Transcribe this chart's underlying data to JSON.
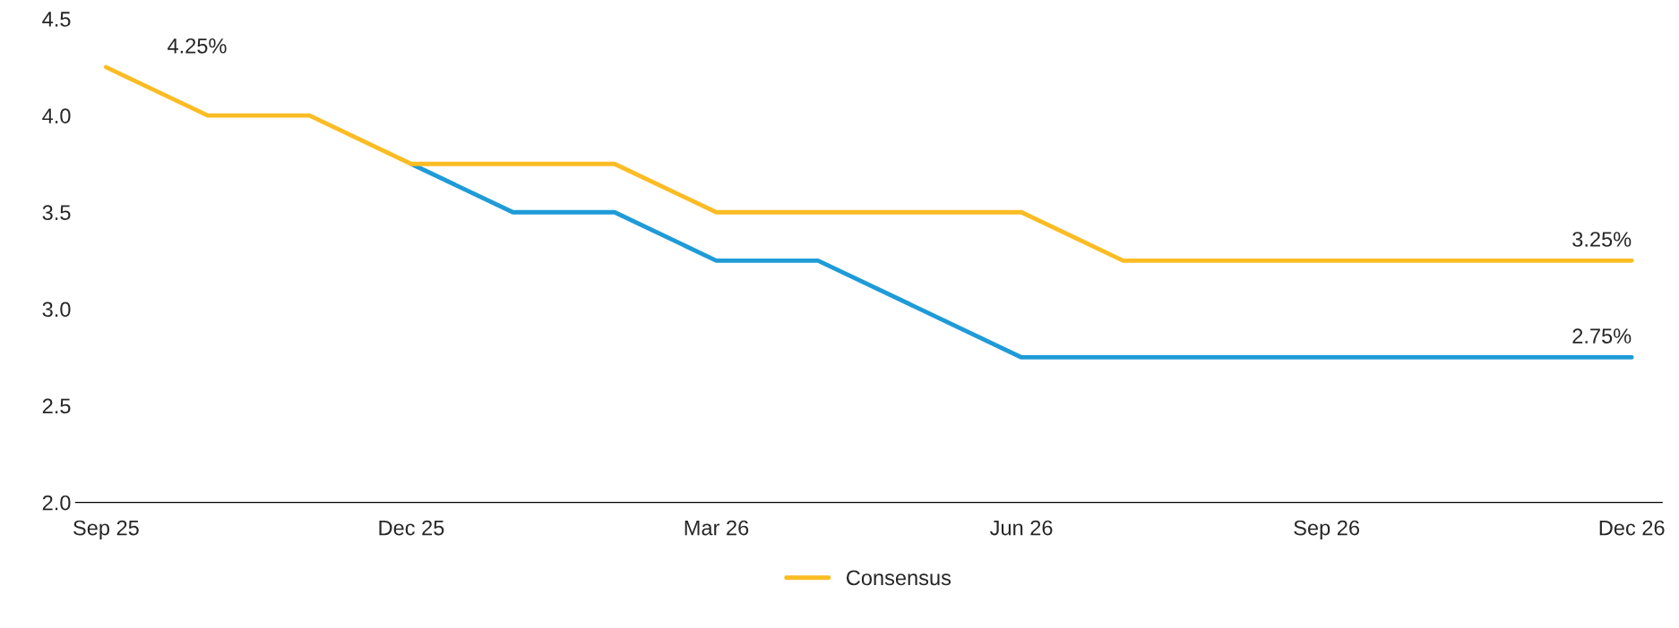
{
  "chart_data": {
    "type": "line",
    "categories": [
      "Sep 25",
      null,
      null,
      "Dec 25",
      null,
      null,
      "Mar 26",
      null,
      null,
      "Jun 26",
      null,
      null,
      "Sep 26",
      null,
      null,
      "Dec 26"
    ],
    "series": [
      {
        "color": "#1f9bd7",
        "values": [
          null,
          null,
          null,
          3.75,
          3.5,
          3.5,
          3.25,
          3.25,
          3.0,
          2.75,
          2.75,
          2.75,
          2.75,
          2.75,
          2.75,
          2.75
        ]
      },
      {
        "name": "Consensus",
        "color": "#fbbc24",
        "values": [
          4.25,
          4.0,
          4.0,
          3.75,
          3.75,
          3.75,
          3.5,
          3.5,
          3.5,
          3.5,
          3.25,
          3.25,
          3.25,
          3.25,
          3.25,
          3.25
        ]
      }
    ],
    "ylim": [
      2.0,
      4.5
    ],
    "yticks": [
      {
        "value": 2.0,
        "label": "2.0"
      },
      {
        "value": 2.5,
        "label": "2.5"
      },
      {
        "value": 3.0,
        "label": "3.0"
      },
      {
        "value": 3.5,
        "label": "3.5"
      },
      {
        "value": 4.0,
        "label": "4.0"
      },
      {
        "value": 4.5,
        "label": "4.5"
      }
    ],
    "annotations": [
      {
        "text": "4.25%",
        "x": "Sep 25",
        "y": 4.25
      },
      {
        "text": "3.25%",
        "x": "Dec 26",
        "y": 3.25
      },
      {
        "text": "2.75%",
        "x": "Dec 26",
        "y": 2.75
      }
    ],
    "grid": false,
    "legend": "bottom",
    "marker": "none",
    "line_style": "solid"
  }
}
